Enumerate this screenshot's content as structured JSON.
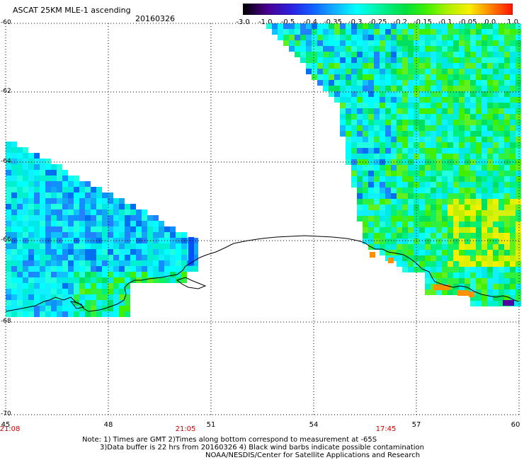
{
  "header": {
    "title": "ASCAT 25KM MLE-1 ascending",
    "date": "20160326"
  },
  "colorbar": {
    "labels": [
      "-3.0",
      "-1.0",
      "-0.5",
      "-0.4",
      "-0.35",
      "-0.3",
      "-0.25",
      "-0.2",
      "-0.15",
      "-0.1",
      "-0.05",
      "0.0",
      "1.0"
    ],
    "colors": [
      "#1a0020",
      "#4a0090",
      "#2020e0",
      "#1070ff",
      "#10c0ff",
      "#00ffff",
      "#00f0a0",
      "#00e060",
      "#40f000",
      "#a0f000",
      "#f0f000",
      "#ff8000",
      "#ff2000"
    ]
  },
  "axes": {
    "lat_labels": [
      "-60",
      "-62",
      "-64",
      "-66",
      "-68",
      "-70"
    ],
    "lon_labels": [
      "45",
      "48",
      "51",
      "54",
      "57",
      "60"
    ],
    "time_labels": [
      "21:08",
      "21:05",
      "17:45"
    ]
  },
  "notes": {
    "line1": "Note: 1) Times are GMT 2)Times along bottom correspond to measurement at -65S",
    "line2": "3)Data buffer is 22 hrs from 20160326 4) Black wind barbs indicate possible contamination",
    "line3": "NOAA/NESDIS/Center for Satellite Applications and Research"
  },
  "style": {
    "time_color": "#cc0000",
    "grid_color": "#000000",
    "coast_color": "#000000"
  }
}
